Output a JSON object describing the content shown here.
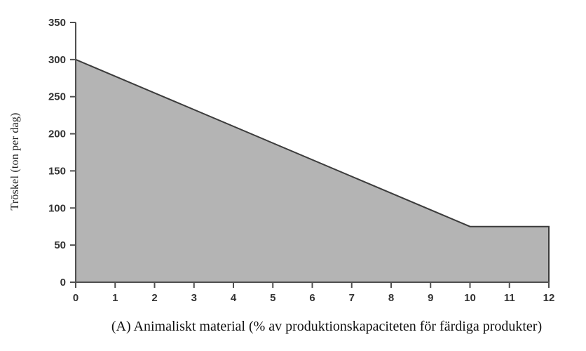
{
  "chart_data": {
    "type": "area",
    "title": "",
    "xlabel": "(A) Animaliskt material (% av produktionskapaciteten för färdiga produkter)",
    "ylabel": "Tröskel (ton per dag)",
    "points": [
      [
        0,
        300
      ],
      [
        10,
        75
      ],
      [
        12,
        75
      ]
    ],
    "baseline": 0,
    "xlim": [
      0,
      12
    ],
    "ylim": [
      0,
      350
    ],
    "xticks": [
      0,
      1,
      2,
      3,
      4,
      5,
      6,
      7,
      8,
      9,
      10,
      11,
      12
    ],
    "yticks": [
      0,
      50,
      100,
      150,
      200,
      250,
      300,
      350
    ],
    "grid": false,
    "legend": "none",
    "colors": {
      "fill": "#b4b4b4",
      "line": "#3c3c3c",
      "axis": "#4f4f4f",
      "text": "#333333"
    }
  }
}
